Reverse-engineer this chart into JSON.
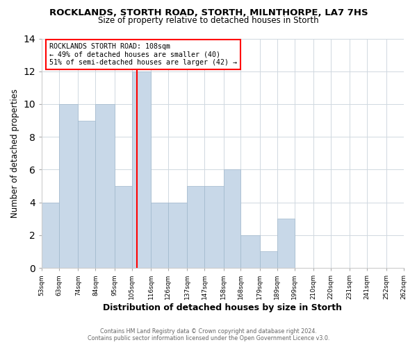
{
  "title": "ROCKLANDS, STORTH ROAD, STORTH, MILNTHORPE, LA7 7HS",
  "subtitle": "Size of property relative to detached houses in Storth",
  "xlabel": "Distribution of detached houses by size in Storth",
  "ylabel": "Number of detached properties",
  "bin_labels": [
    "53sqm",
    "63sqm",
    "74sqm",
    "84sqm",
    "95sqm",
    "105sqm",
    "116sqm",
    "126sqm",
    "137sqm",
    "147sqm",
    "158sqm",
    "168sqm",
    "179sqm",
    "189sqm",
    "199sqm",
    "210sqm",
    "220sqm",
    "231sqm",
    "241sqm",
    "252sqm",
    "262sqm"
  ],
  "bin_edges": [
    53,
    63,
    74,
    84,
    95,
    105,
    116,
    126,
    137,
    147,
    158,
    168,
    179,
    189,
    199,
    210,
    220,
    231,
    241,
    252,
    262
  ],
  "counts": [
    4,
    10,
    9,
    10,
    5,
    12,
    4,
    4,
    5,
    5,
    6,
    2,
    1,
    3,
    0,
    0,
    0,
    0,
    0,
    0
  ],
  "bar_color": "#c8d8e8",
  "bar_edgecolor": "#a0b8cc",
  "reference_line_x": 108,
  "reference_line_color": "red",
  "annotation_title": "ROCKLANDS STORTH ROAD: 108sqm",
  "annotation_line1": "← 49% of detached houses are smaller (40)",
  "annotation_line2": "51% of semi-detached houses are larger (42) →",
  "annotation_box_edgecolor": "red",
  "ylim": [
    0,
    14
  ],
  "yticks": [
    0,
    2,
    4,
    6,
    8,
    10,
    12,
    14
  ],
  "footer1": "Contains HM Land Registry data © Crown copyright and database right 2024.",
  "footer2": "Contains public sector information licensed under the Open Government Licence v3.0.",
  "background_color": "#ffffff",
  "plot_bg_color": "#ffffff"
}
